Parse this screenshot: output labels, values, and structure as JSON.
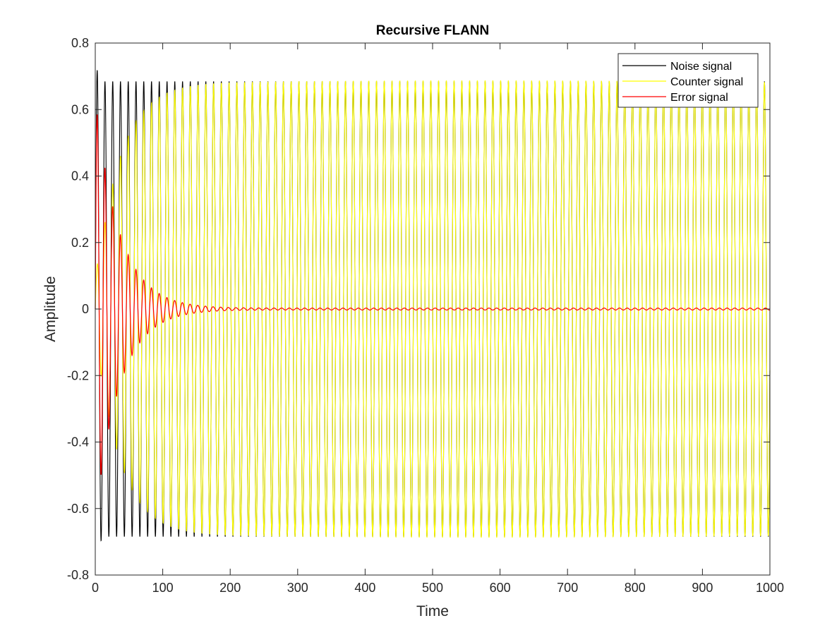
{
  "chart_data": {
    "type": "line",
    "title": "Recursive FLANN",
    "xlabel": "Time",
    "ylabel": "Amplitude",
    "xlim": [
      0,
      1000
    ],
    "ylim": [
      -0.8,
      0.8
    ],
    "xticks": [
      "0",
      "100",
      "200",
      "300",
      "400",
      "500",
      "600",
      "700",
      "800",
      "900",
      "1000"
    ],
    "yticks": [
      "-0.8",
      "-0.6",
      "-0.4",
      "-0.2",
      "0",
      "0.2",
      "0.4",
      "0.6",
      "0.8"
    ],
    "grid": false,
    "legend_position": "top-right",
    "series": [
      {
        "name": "Noise signal",
        "color": "#000000",
        "style": "solid",
        "description_values": {
          "amplitude": 0.685,
          "period": 11.5,
          "first_peak": 0.74,
          "x_range": [
            0,
            1000
          ]
        }
      },
      {
        "name": "Counter signal",
        "color": "#ffff00",
        "style": "solid",
        "description_values": {
          "amplitude": 0.685,
          "period": 11.5,
          "x_range": [
            0,
            1000
          ]
        }
      },
      {
        "name": "Error signal",
        "color": "#ff0000",
        "style": "solid",
        "description_values": {
          "initial_amplitude": 0.63,
          "decays_to_zero_by": 150,
          "period": 11.5
        }
      }
    ]
  }
}
